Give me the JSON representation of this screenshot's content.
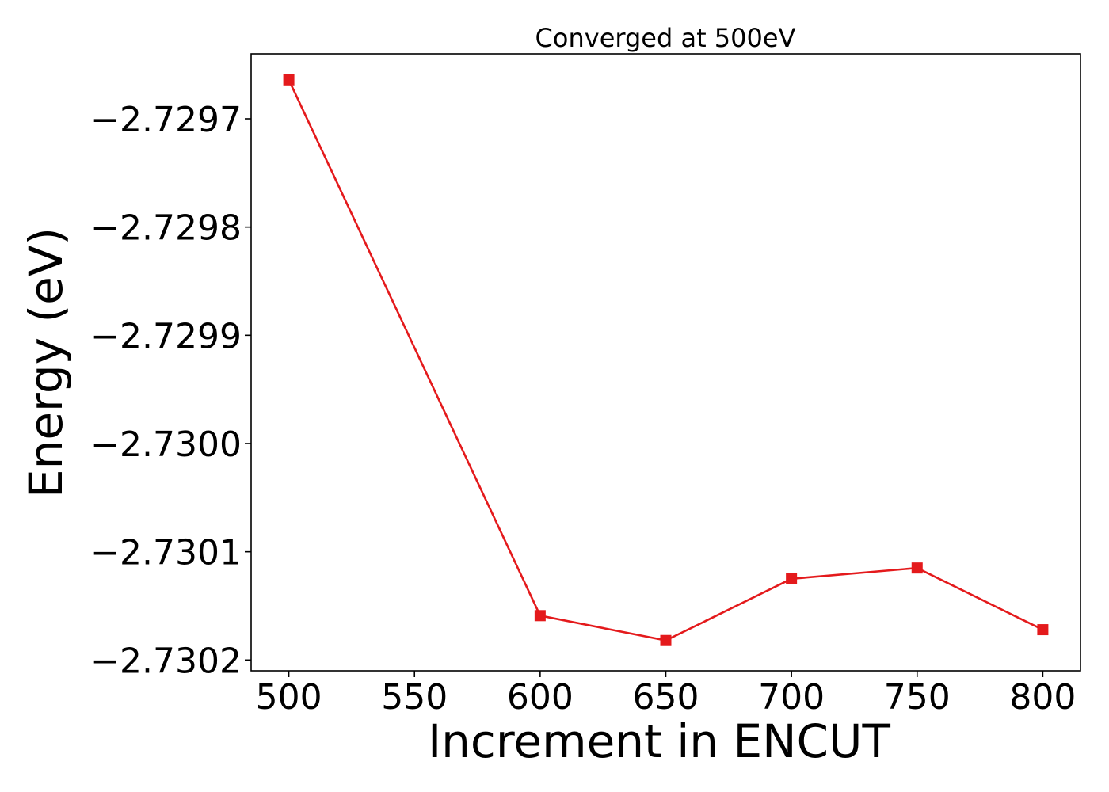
{
  "chart_data": {
    "type": "line",
    "title": "Converged at 500eV",
    "xlabel": "Increment in ENCUT",
    "ylabel": "Energy (eV)",
    "x": [
      500,
      600,
      650,
      700,
      750,
      800
    ],
    "series": [
      {
        "values": [
          -2.729664,
          -2.730159,
          -2.730182,
          -2.730125,
          -2.730115,
          -2.730172
        ],
        "color": "#e41a1c",
        "marker": "square"
      }
    ],
    "xlim": [
      485,
      815
    ],
    "ylim": [
      -2.73021,
      -2.72964
    ],
    "xticks": [
      500,
      550,
      600,
      650,
      700,
      750,
      800
    ],
    "xtick_labels": [
      "500",
      "550",
      "600",
      "650",
      "700",
      "750",
      "800"
    ],
    "yticks": [
      -2.7297,
      -2.7298,
      -2.7299,
      -2.73,
      -2.7301,
      -2.7302
    ],
    "ytick_labels": [
      "−2.7297",
      "−2.7298",
      "−2.7299",
      "−2.7300",
      "−2.7301",
      "−2.7302"
    ],
    "grid": false,
    "legend": "none"
  }
}
